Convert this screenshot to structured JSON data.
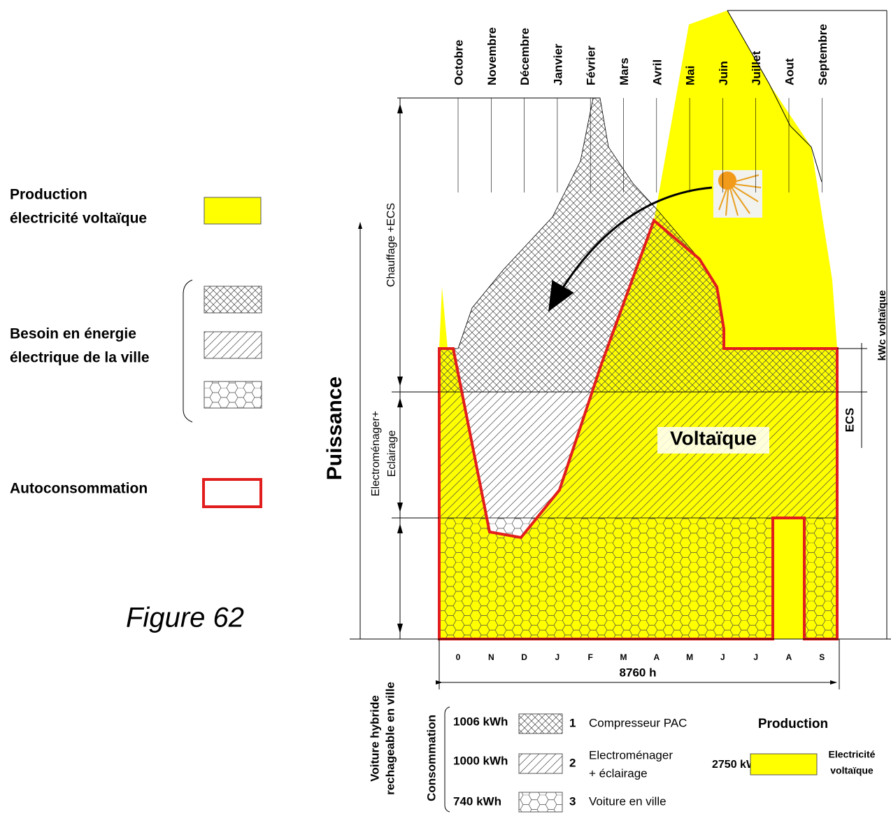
{
  "legend": {
    "production": [
      "Production",
      "électricité voltaïque"
    ],
    "besoin": [
      "Besoin en énergie",
      "électrique de la ville"
    ],
    "autoconsommation": "Autoconsommation"
  },
  "figure_label": "Figure 62",
  "months": [
    "Octobre",
    "Novembre",
    "Décembre",
    "Janvier",
    "Février",
    "Mars",
    "Avril",
    "Mai",
    "Juin",
    "Juillet",
    "Aout",
    "Septembre"
  ],
  "month_initials": [
    "0",
    "N",
    "D",
    "J",
    "F",
    "M",
    "A",
    "M",
    "J",
    "J",
    "A",
    "S"
  ],
  "y_axis_label": "Puissance",
  "bands": {
    "chauffage": "Chauffage +ECS",
    "electromenager": [
      "Electroménager+",
      "Eclairage"
    ],
    "voiture": [
      "Voiture hybride",
      "rechageable en ville"
    ]
  },
  "right_labels": {
    "kwc": "kWc  voltaïque",
    "ecs": "ECS"
  },
  "center_label": "Voltaïque",
  "duration": "8760 h",
  "consumption": {
    "title": "Consommation",
    "items": [
      {
        "energy": "1006 kWh",
        "number": "1",
        "label": [
          "Compresseur PAC"
        ]
      },
      {
        "energy": "1000 kWh",
        "number": "2",
        "label": [
          "Electroménager",
          "+ éclairage"
        ]
      },
      {
        "energy": "740 kWh",
        "number": "3",
        "label": [
          "Voiture en ville"
        ]
      }
    ]
  },
  "production": {
    "title": "Production",
    "energy": "2750 kWh",
    "label": [
      "Electricité",
      "voltaïque"
    ]
  }
}
